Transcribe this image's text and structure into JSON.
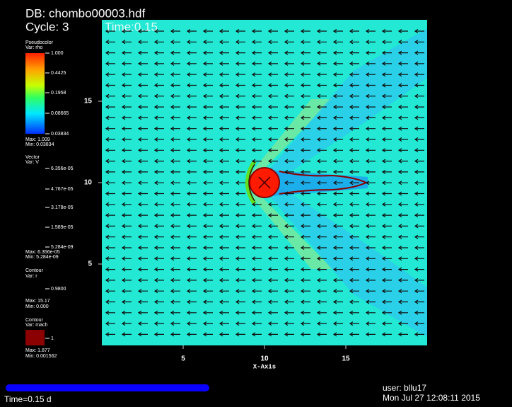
{
  "header": {
    "db": "DB: chombo00003.hdf",
    "cycle": "Cycle: 3",
    "time": "Time:0.15"
  },
  "legends": [
    {
      "title": "Pseudocolor",
      "var": "Var: rho",
      "labels": [
        "1.000",
        "0.4425",
        "0.1958",
        "0.08665",
        "0.03834"
      ],
      "max": "Max: 1.009",
      "min": "Min: 0.03834"
    },
    {
      "title": "Vector",
      "var": "Var: V",
      "labels": [
        "6.356e-05",
        "4.767e-05",
        "3.178e-05",
        "1.589e-05",
        "5.284e-09"
      ],
      "max": "Max: 6.356e-05",
      "min": "Min: 5.284e-09"
    },
    {
      "title": "Contour",
      "var": "Var: r",
      "labels": [
        "0.9800"
      ],
      "max": "Max: 15.17",
      "min": "Min: 0.000"
    },
    {
      "title": "Contour",
      "var": "Var: mach",
      "labels": [
        "1"
      ],
      "max": "Max: 1.877",
      "min": "Min: 0.001562"
    }
  ],
  "plot": {
    "x_label": "X-Axis",
    "xlim": [
      0,
      20
    ],
    "ylim": [
      0,
      20
    ],
    "xticks": [
      5,
      10,
      15
    ],
    "yticks": [
      5,
      10,
      15
    ]
  },
  "footer": {
    "time": "Time=0.15 d",
    "user": "user: bllu17",
    "date": "Mon Jul 27 12:08:11 2015"
  }
}
